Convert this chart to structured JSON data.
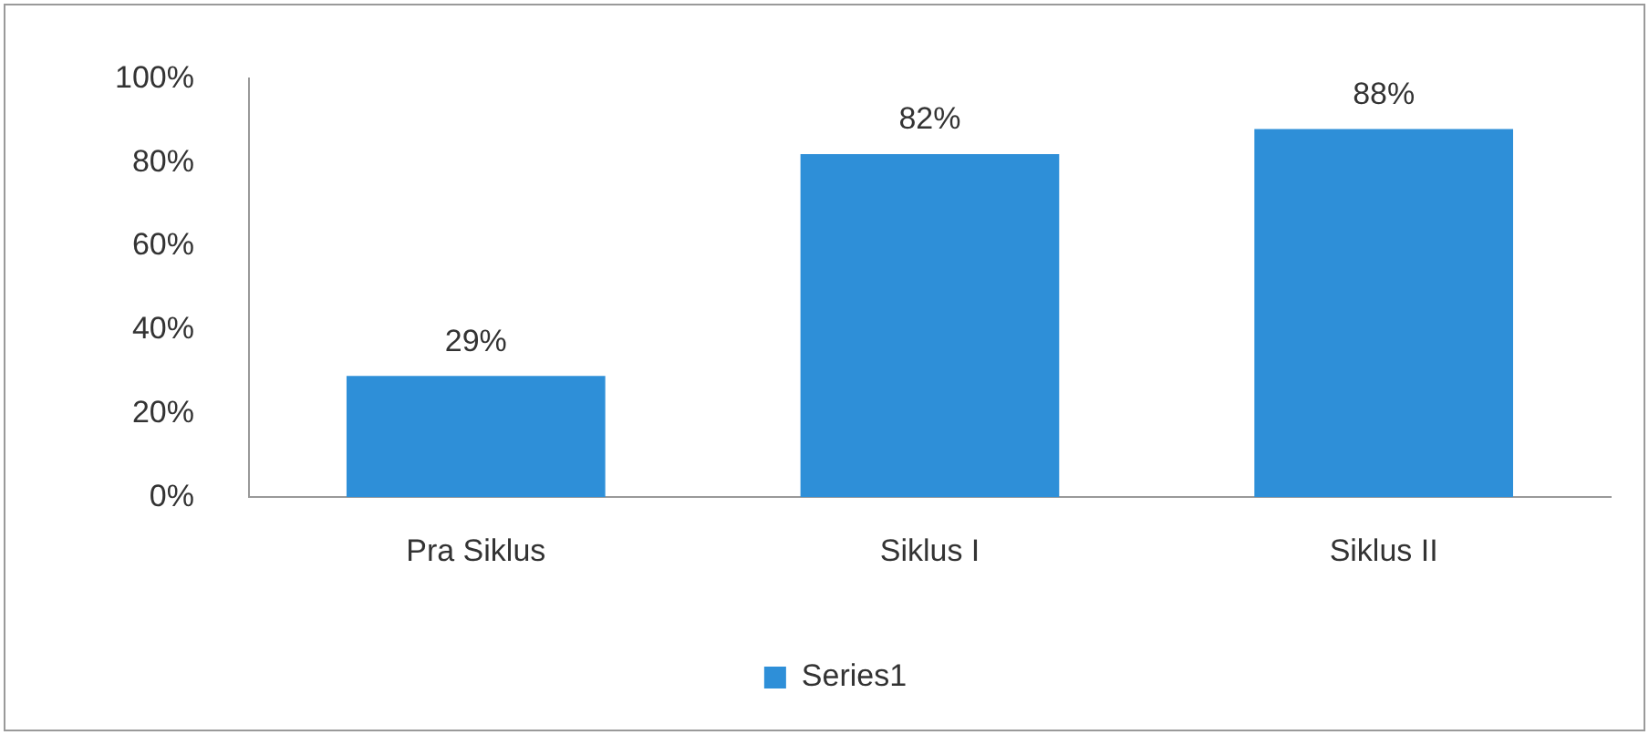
{
  "chart_data": {
    "type": "bar",
    "categories": [
      "Pra Siklus",
      "Siklus I",
      "Siklus II"
    ],
    "series": [
      {
        "name": "Series1",
        "color": "#2e8fd8",
        "values": [
          29,
          82,
          88
        ],
        "value_labels": [
          "29%",
          "82%",
          "88%"
        ]
      }
    ],
    "ylim": [
      0,
      100
    ],
    "yticks": [
      {
        "value": 0,
        "label": "0%"
      },
      {
        "value": 20,
        "label": "20%"
      },
      {
        "value": 40,
        "label": "40%"
      },
      {
        "value": 60,
        "label": "60%"
      },
      {
        "value": 80,
        "label": "80%"
      },
      {
        "value": 100,
        "label": "100%"
      }
    ],
    "grid": false,
    "legend": "bottom"
  }
}
